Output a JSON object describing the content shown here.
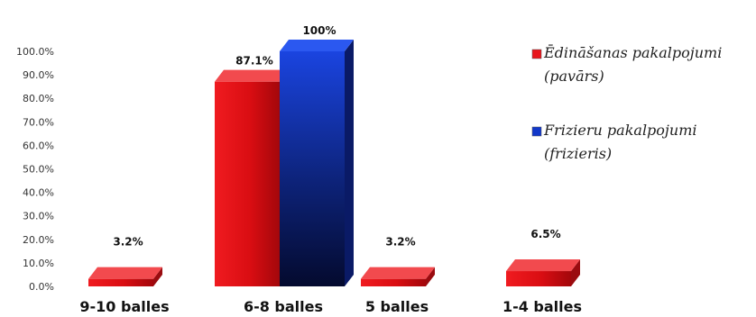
{
  "chart_data": {
    "type": "bar",
    "categories": [
      "9-10 balles",
      "6-8 balles",
      "5 balles",
      "1-4 balles"
    ],
    "series": [
      {
        "name_lines": [
          "Ēdināšanas pakalpojumi",
          "(pavārs)"
        ],
        "values": [
          3.2,
          87.1,
          3.2,
          6.5
        ],
        "labels": [
          "3.2%",
          "87.1%",
          "3.2%",
          "6.5%"
        ],
        "color": "#e8151b"
      },
      {
        "name_lines": [
          "Frizieru pakalpojumi",
          "(frizieris)"
        ],
        "values": [
          0,
          100,
          0,
          0
        ],
        "labels": [
          "",
          "100%",
          "",
          ""
        ],
        "color": "#1238c9"
      }
    ],
    "yticks": [
      "0.0%",
      "10.0%",
      "20.0%",
      "30.0%",
      "40.0%",
      "50.0%",
      "60.0%",
      "70.0%",
      "80.0%",
      "90.0%",
      "100.0%"
    ],
    "ylim": [
      0,
      100
    ],
    "grid": false,
    "legend_position": "right",
    "style": "3d"
  }
}
